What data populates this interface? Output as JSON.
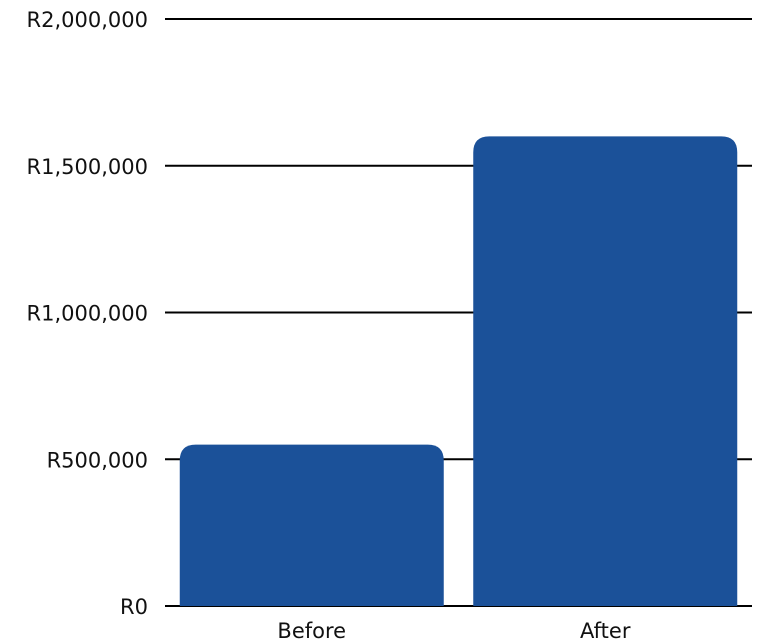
{
  "chart_data": {
    "type": "bar",
    "title": "",
    "xlabel": "",
    "ylabel": "",
    "categories": [
      "Before",
      "After"
    ],
    "values": [
      550000,
      1600000
    ],
    "ylim": [
      0,
      2000000
    ],
    "yticks": [
      0,
      500000,
      1000000,
      1500000,
      2000000
    ],
    "ytick_labels": [
      "R0",
      "R500,000",
      "R1,000,000",
      "R1,500,000",
      "R2,000,000"
    ],
    "grid": true,
    "legend": "none",
    "colors": {
      "bar": "#1b5199",
      "grid": "#000000",
      "text": "#111111"
    }
  }
}
